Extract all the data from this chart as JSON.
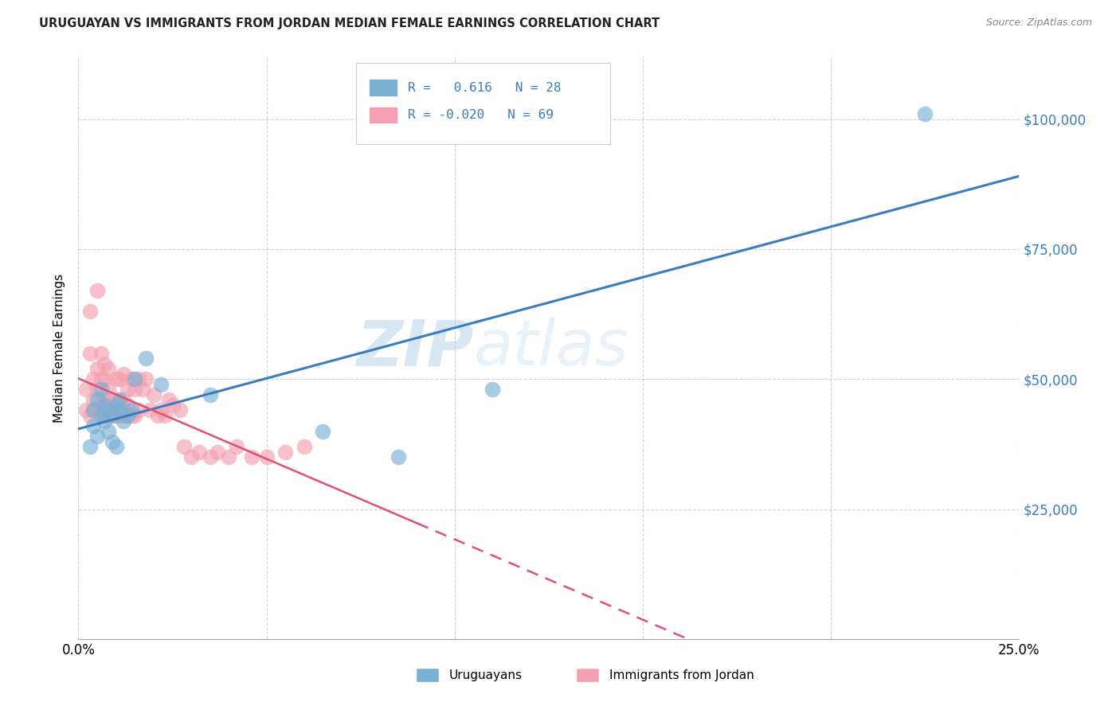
{
  "title": "URUGUAYAN VS IMMIGRANTS FROM JORDAN MEDIAN FEMALE EARNINGS CORRELATION CHART",
  "source": "Source: ZipAtlas.com",
  "ylabel": "Median Female Earnings",
  "xlim": [
    0.0,
    0.25
  ],
  "ylim": [
    0,
    112000
  ],
  "blue_color": "#7BAFD4",
  "pink_color": "#F4A0B0",
  "trend_blue": "#3A7CC1",
  "trend_pink": "#E05070",
  "watermark_zip": "ZIP",
  "watermark_atlas": "atlas",
  "uruguayan_x": [
    0.003,
    0.004,
    0.004,
    0.005,
    0.005,
    0.006,
    0.006,
    0.007,
    0.007,
    0.008,
    0.008,
    0.009,
    0.009,
    0.01,
    0.01,
    0.011,
    0.011,
    0.012,
    0.013,
    0.014,
    0.015,
    0.018,
    0.022,
    0.035,
    0.065,
    0.085,
    0.11,
    0.225
  ],
  "uruguayan_y": [
    37000,
    41000,
    44000,
    39000,
    46000,
    43000,
    48000,
    42000,
    45000,
    40000,
    44000,
    38000,
    43000,
    45000,
    37000,
    44000,
    46000,
    42000,
    43000,
    44000,
    50000,
    54000,
    49000,
    47000,
    40000,
    35000,
    48000,
    101000
  ],
  "jordan_x": [
    0.002,
    0.002,
    0.003,
    0.003,
    0.003,
    0.004,
    0.004,
    0.004,
    0.005,
    0.005,
    0.005,
    0.005,
    0.006,
    0.006,
    0.006,
    0.006,
    0.007,
    0.007,
    0.007,
    0.007,
    0.007,
    0.008,
    0.008,
    0.008,
    0.008,
    0.009,
    0.009,
    0.009,
    0.01,
    0.01,
    0.01,
    0.01,
    0.011,
    0.011,
    0.011,
    0.012,
    0.012,
    0.012,
    0.012,
    0.013,
    0.013,
    0.013,
    0.014,
    0.014,
    0.015,
    0.015,
    0.016,
    0.016,
    0.017,
    0.018,
    0.019,
    0.02,
    0.021,
    0.022,
    0.023,
    0.024,
    0.025,
    0.027,
    0.028,
    0.03,
    0.032,
    0.035,
    0.037,
    0.04,
    0.042,
    0.046,
    0.05,
    0.055,
    0.06
  ],
  "jordan_y": [
    44000,
    48000,
    43000,
    55000,
    63000,
    44000,
    46000,
    50000,
    44000,
    48000,
    52000,
    67000,
    44000,
    46000,
    50000,
    55000,
    43000,
    44000,
    46000,
    50000,
    53000,
    43000,
    45000,
    48000,
    52000,
    43000,
    44000,
    46000,
    43000,
    44000,
    46000,
    50000,
    43000,
    45000,
    50000,
    43000,
    44000,
    46000,
    51000,
    43000,
    45000,
    48000,
    43000,
    50000,
    43000,
    48000,
    44000,
    50000,
    48000,
    50000,
    44000,
    47000,
    43000,
    44000,
    43000,
    46000,
    45000,
    44000,
    37000,
    35000,
    36000,
    35000,
    36000,
    35000,
    37000,
    35000,
    35000,
    36000,
    37000
  ]
}
